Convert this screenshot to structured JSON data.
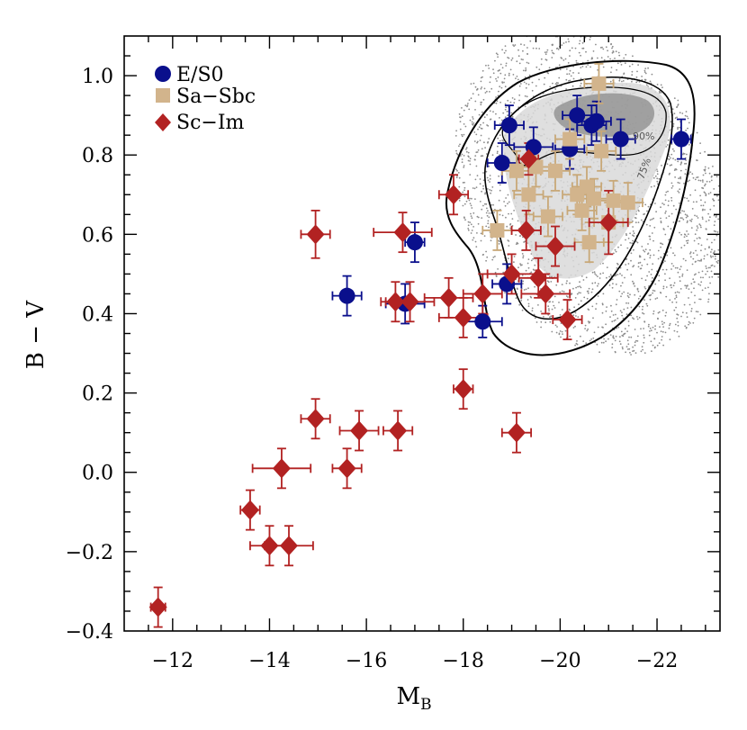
{
  "chart_data": {
    "type": "scatter",
    "xlabel": "M",
    "xlabel_sub": "B",
    "ylabel": "B − V",
    "xlim": [
      -11.0,
      -23.3
    ],
    "ylim": [
      -0.4,
      1.1
    ],
    "x_ticks": [
      -12,
      -14,
      -16,
      -18,
      -20,
      -22
    ],
    "x_tick_labels": [
      "−12",
      "−14",
      "−16",
      "−18",
      "−20",
      "−22"
    ],
    "y_ticks": [
      -0.4,
      -0.2,
      0.0,
      0.2,
      0.4,
      0.6,
      0.8,
      1.0
    ],
    "y_tick_labels": [
      "−0.4",
      "−0.2",
      "0.0",
      "0.2",
      "0.4",
      "0.6",
      "0.8",
      "1.0"
    ],
    "grid": false,
    "legend_position": "top-left",
    "contour_labels": [
      "90%",
      "75%"
    ],
    "series": [
      {
        "name": "E/S0",
        "marker": "circle",
        "color": "#0a0f8c",
        "points": [
          {
            "x": -17.0,
            "y": 0.58,
            "xerr": 0.2,
            "yerr": 0.05
          },
          {
            "x": -15.6,
            "y": 0.445,
            "xerr": 0.3,
            "yerr": 0.05
          },
          {
            "x": -16.8,
            "y": 0.425,
            "xerr": 0.4,
            "yerr": 0.05
          },
          {
            "x": -18.4,
            "y": 0.38,
            "xerr": 0.4,
            "yerr": 0.04
          },
          {
            "x": -18.9,
            "y": 0.475,
            "xerr": 0.3,
            "yerr": 0.05
          },
          {
            "x": -18.8,
            "y": 0.78,
            "xerr": 0.3,
            "yerr": 0.05
          },
          {
            "x": -18.95,
            "y": 0.875,
            "xerr": 0.3,
            "yerr": 0.05
          },
          {
            "x": -19.45,
            "y": 0.82,
            "xerr": 0.4,
            "yerr": 0.05
          },
          {
            "x": -20.2,
            "y": 0.815,
            "xerr": 0.3,
            "yerr": 0.05
          },
          {
            "x": -20.35,
            "y": 0.9,
            "xerr": 0.3,
            "yerr": 0.05
          },
          {
            "x": -20.65,
            "y": 0.875,
            "xerr": 0.3,
            "yerr": 0.05
          },
          {
            "x": -20.75,
            "y": 0.885,
            "xerr": 0.3,
            "yerr": 0.05
          },
          {
            "x": -21.25,
            "y": 0.84,
            "xerr": 0.3,
            "yerr": 0.05
          },
          {
            "x": -22.5,
            "y": 0.84,
            "xerr": 0.2,
            "yerr": 0.05
          }
        ]
      },
      {
        "name": "Sa−Sbc",
        "marker": "square",
        "color": "#d2b48c",
        "points": [
          {
            "x": -18.7,
            "y": 0.61,
            "xerr": 0.3,
            "yerr": 0.05
          },
          {
            "x": -19.1,
            "y": 0.76,
            "xerr": 0.3,
            "yerr": 0.05
          },
          {
            "x": -19.35,
            "y": 0.7,
            "xerr": 0.3,
            "yerr": 0.05
          },
          {
            "x": -19.5,
            "y": 0.77,
            "xerr": 0.3,
            "yerr": 0.05
          },
          {
            "x": -19.75,
            "y": 0.645,
            "xerr": 0.3,
            "yerr": 0.05
          },
          {
            "x": -19.9,
            "y": 0.76,
            "xerr": 0.3,
            "yerr": 0.05
          },
          {
            "x": -20.2,
            "y": 0.84,
            "xerr": 0.3,
            "yerr": 0.05
          },
          {
            "x": -20.35,
            "y": 0.7,
            "xerr": 0.3,
            "yerr": 0.05
          },
          {
            "x": -20.45,
            "y": 0.66,
            "xerr": 0.3,
            "yerr": 0.05
          },
          {
            "x": -20.55,
            "y": 0.72,
            "xerr": 0.3,
            "yerr": 0.05
          },
          {
            "x": -20.6,
            "y": 0.58,
            "xerr": 0.3,
            "yerr": 0.05
          },
          {
            "x": -20.7,
            "y": 0.69,
            "xerr": 0.3,
            "yerr": 0.05
          },
          {
            "x": -20.8,
            "y": 0.98,
            "xerr": 0.3,
            "yerr": 0.05
          },
          {
            "x": -20.85,
            "y": 0.81,
            "xerr": 0.3,
            "yerr": 0.05
          },
          {
            "x": -21.0,
            "y": 0.63,
            "xerr": 0.3,
            "yerr": 0.05
          },
          {
            "x": -21.1,
            "y": 0.685,
            "xerr": 0.3,
            "yerr": 0.05
          },
          {
            "x": -21.4,
            "y": 0.68,
            "xerr": 0.3,
            "yerr": 0.05
          }
        ]
      },
      {
        "name": "Sc−Im",
        "marker": "diamond",
        "color": "#b22222",
        "points": [
          {
            "x": -11.7,
            "y": -0.34,
            "xerr": 0.15,
            "yerr": 0.05
          },
          {
            "x": -13.6,
            "y": -0.095,
            "xerr": 0.2,
            "yerr": 0.05
          },
          {
            "x": -14.0,
            "y": -0.185,
            "xerr": 0.4,
            "yerr": 0.05
          },
          {
            "x": -14.25,
            "y": 0.01,
            "xerr": 0.6,
            "yerr": 0.05
          },
          {
            "x": -14.4,
            "y": -0.185,
            "xerr": 0.5,
            "yerr": 0.05
          },
          {
            "x": -14.95,
            "y": 0.6,
            "xerr": 0.3,
            "yerr": 0.06
          },
          {
            "x": -14.95,
            "y": 0.135,
            "xerr": 0.3,
            "yerr": 0.05
          },
          {
            "x": -15.6,
            "y": 0.01,
            "xerr": 0.3,
            "yerr": 0.05
          },
          {
            "x": -15.85,
            "y": 0.105,
            "xerr": 0.4,
            "yerr": 0.05
          },
          {
            "x": -16.6,
            "y": 0.43,
            "xerr": 0.3,
            "yerr": 0.05
          },
          {
            "x": -16.65,
            "y": 0.105,
            "xerr": 0.3,
            "yerr": 0.05
          },
          {
            "x": -16.75,
            "y": 0.605,
            "xerr": 0.6,
            "yerr": 0.05
          },
          {
            "x": -16.9,
            "y": 0.43,
            "xerr": 0.5,
            "yerr": 0.05
          },
          {
            "x": -17.7,
            "y": 0.44,
            "xerr": 0.5,
            "yerr": 0.05
          },
          {
            "x": -17.8,
            "y": 0.7,
            "xerr": 0.3,
            "yerr": 0.05
          },
          {
            "x": -18.0,
            "y": 0.39,
            "xerr": 0.5,
            "yerr": 0.05
          },
          {
            "x": -18.0,
            "y": 0.21,
            "xerr": 0.2,
            "yerr": 0.05
          },
          {
            "x": -18.4,
            "y": 0.45,
            "xerr": 0.4,
            "yerr": 0.05
          },
          {
            "x": -19.0,
            "y": 0.5,
            "xerr": 0.5,
            "yerr": 0.05
          },
          {
            "x": -19.1,
            "y": 0.1,
            "xerr": 0.3,
            "yerr": 0.05
          },
          {
            "x": -19.35,
            "y": 0.79,
            "xerr": 0.2,
            "yerr": 0.04
          },
          {
            "x": -19.3,
            "y": 0.61,
            "xerr": 0.3,
            "yerr": 0.05
          },
          {
            "x": -19.55,
            "y": 0.49,
            "xerr": 0.4,
            "yerr": 0.05
          },
          {
            "x": -19.7,
            "y": 0.45,
            "xerr": 0.5,
            "yerr": 0.05
          },
          {
            "x": -19.9,
            "y": 0.57,
            "xerr": 0.4,
            "yerr": 0.05
          },
          {
            "x": -20.15,
            "y": 0.385,
            "xerr": 0.3,
            "yerr": 0.05
          },
          {
            "x": -21.0,
            "y": 0.63,
            "xerr": 0.4,
            "yerr": 0.08
          }
        ]
      }
    ]
  }
}
